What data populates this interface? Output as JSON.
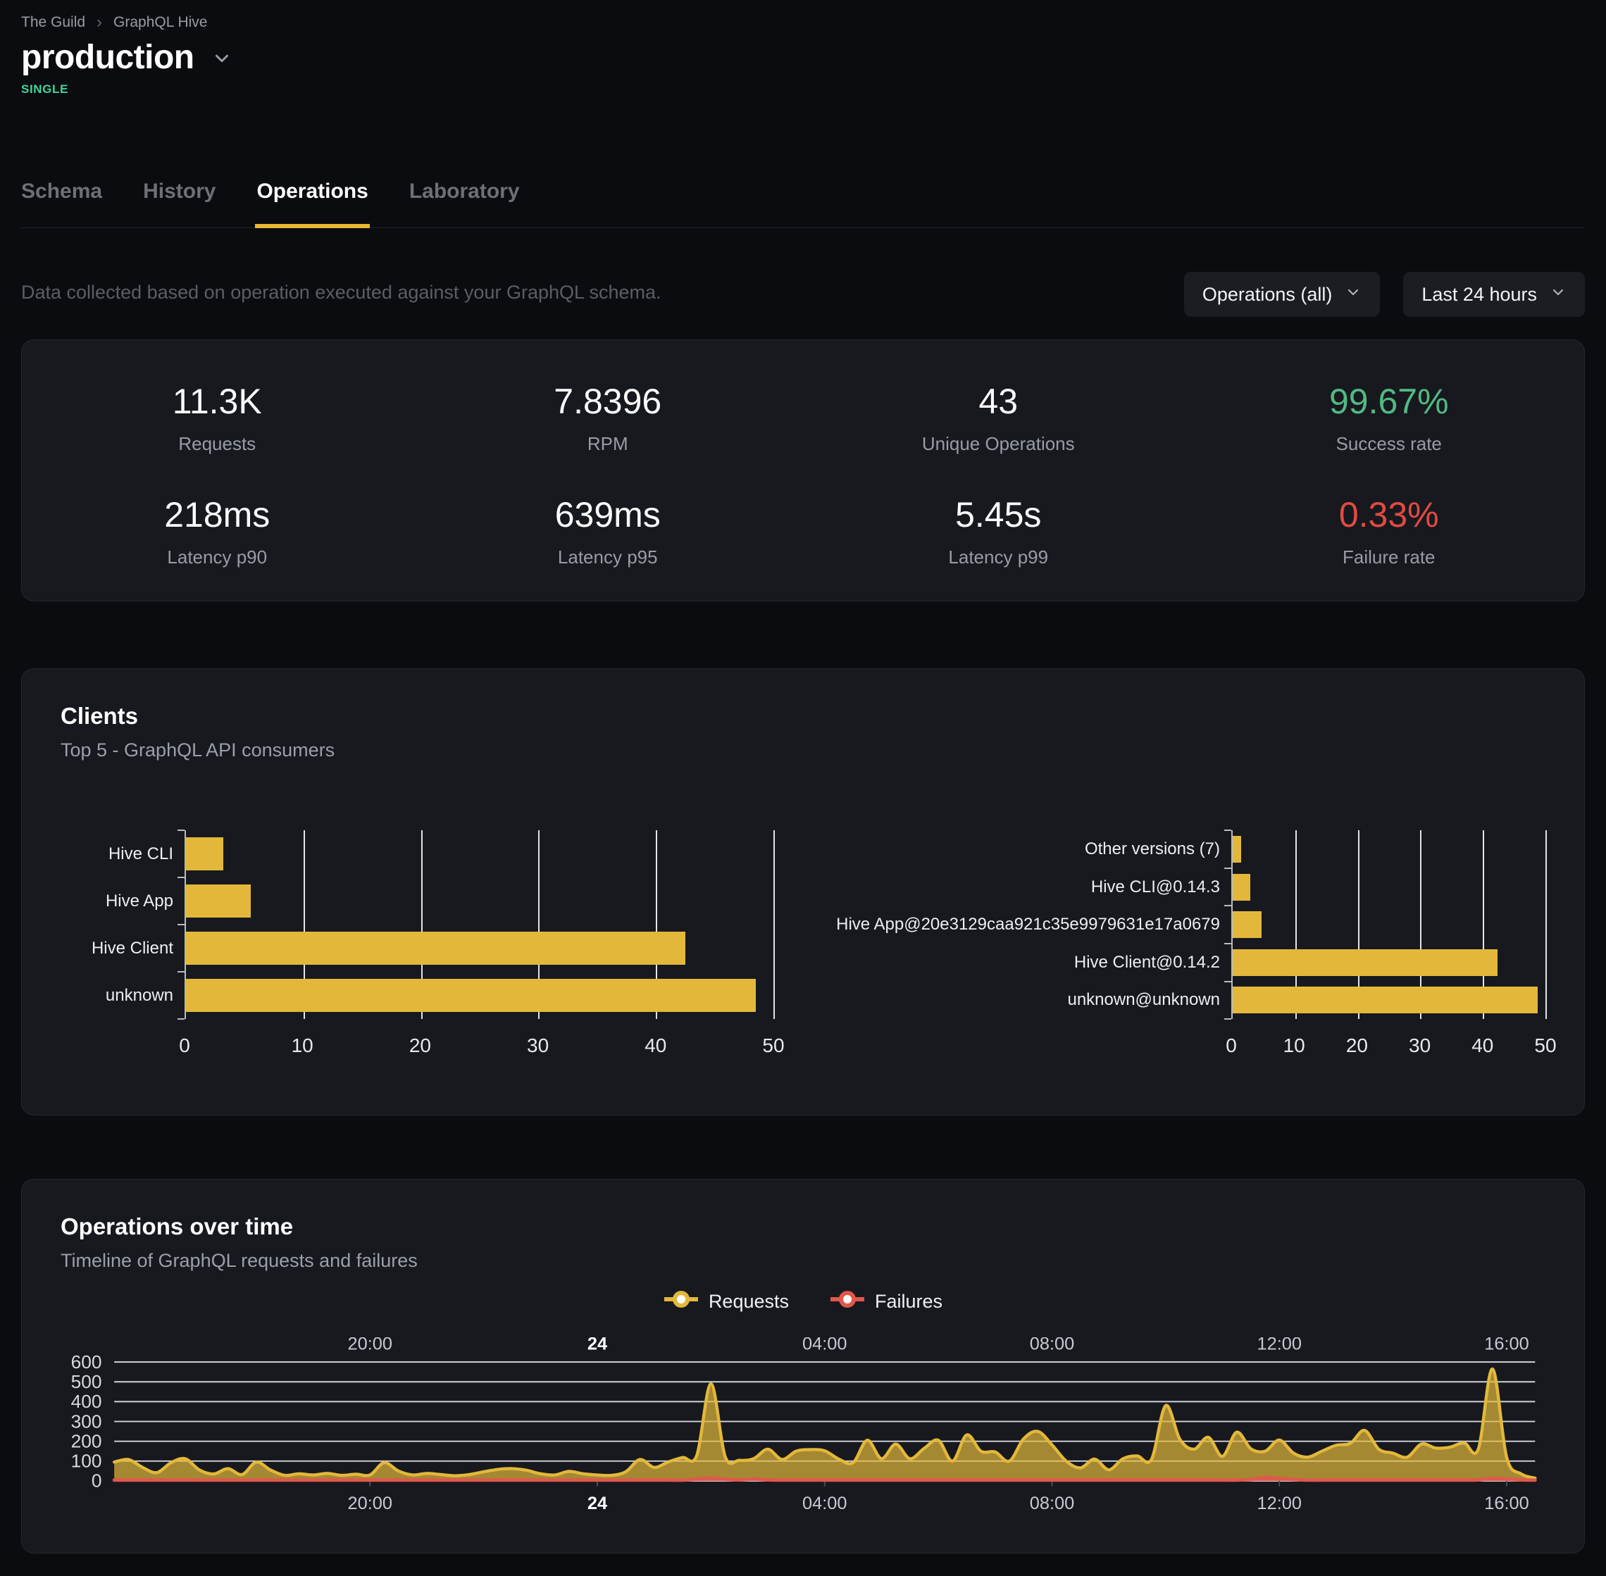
{
  "header": {
    "breadcrumb": {
      "items": [
        "The Guild",
        "GraphQL Hive"
      ],
      "separator": "›"
    },
    "project_name": "production",
    "badge": "SINGLE"
  },
  "tabs": [
    {
      "label": "Schema"
    },
    {
      "label": "History"
    },
    {
      "label": "Operations"
    },
    {
      "label": "Laboratory"
    }
  ],
  "toolbar": {
    "description": "Data collected based on operation executed against your GraphQL schema.",
    "operations_filter": "Operations (all)",
    "period_filter": "Last 24 hours"
  },
  "stats": [
    {
      "value": "11.3K",
      "label": "Requests"
    },
    {
      "value": "7.8396",
      "label": "RPM"
    },
    {
      "value": "43",
      "label": "Unique Operations"
    },
    {
      "value": "99.67%",
      "label": "Success rate",
      "accent": "green"
    },
    {
      "value": "218ms",
      "label": "Latency p90"
    },
    {
      "value": "639ms",
      "label": "Latency p95"
    },
    {
      "value": "5.45s",
      "label": "Latency p99"
    },
    {
      "value": "0.33%",
      "label": "Failure rate",
      "accent": "red"
    }
  ],
  "clients_card": {
    "title": "Clients",
    "subtitle": "Top 5 - GraphQL API consumers"
  },
  "timeline_card": {
    "title": "Operations over time",
    "subtitle": "Timeline of GraphQL requests and failures",
    "legend": [
      {
        "label": "Requests",
        "color": "#e3b83a"
      },
      {
        "label": "Failures",
        "color": "#e2574b"
      }
    ]
  },
  "colors": {
    "accent_yellow": "#e3b83a",
    "accent_red": "#e2574b",
    "stat_green": "#52b983",
    "stat_red": "#e24a41",
    "badge_mint": "#3fd69d",
    "card_bg": "#17191f",
    "page_bg": "#0b0c0f"
  },
  "chart_data": [
    {
      "id": "clients-by-name",
      "type": "bar",
      "orientation": "horizontal",
      "categories": [
        "Hive CLI",
        "Hive App",
        "Hive Client",
        "unknown"
      ],
      "values": [
        3.2,
        5.5,
        42.5,
        48.5
      ],
      "xlim": [
        0,
        50
      ],
      "x_ticks": [
        0,
        10,
        20,
        30,
        40,
        50
      ],
      "bar_color": "#e3b83a",
      "grid": true
    },
    {
      "id": "clients-by-version",
      "type": "bar",
      "orientation": "horizontal",
      "categories": [
        "Other versions (7)",
        "Hive CLI@0.14.3",
        "Hive App@20e3129caa921c35e9979631e17a0679",
        "Hive Client@0.14.2",
        "unknown@unknown"
      ],
      "values": [
        1.3,
        2.8,
        4.6,
        42.3,
        48.8
      ],
      "xlim": [
        0,
        50
      ],
      "x_ticks": [
        0,
        10,
        20,
        30,
        40,
        50
      ],
      "bar_color": "#e3b83a",
      "grid": true
    },
    {
      "id": "operations-over-time",
      "type": "area",
      "x_range_hours": [
        0,
        25
      ],
      "x_ticks": [
        {
          "t": 4.5,
          "label": "20:00"
        },
        {
          "t": 8.5,
          "label": "24",
          "bold": true
        },
        {
          "t": 12.5,
          "label": "04:00"
        },
        {
          "t": 16.5,
          "label": "08:00"
        },
        {
          "t": 20.5,
          "label": "12:00"
        },
        {
          "t": 24.5,
          "label": "16:00"
        }
      ],
      "ylim": [
        0,
        600
      ],
      "y_ticks": [
        0,
        100,
        200,
        300,
        400,
        500,
        600
      ],
      "grid": true,
      "legend_position": "top-center",
      "series": [
        {
          "name": "Requests",
          "color": "#e3b83a",
          "step_hours": 0.25,
          "values": [
            95,
            108,
            68,
            42,
            92,
            112,
            55,
            35,
            62,
            32,
            95,
            55,
            28,
            36,
            30,
            38,
            28,
            34,
            30,
            92,
            50,
            30,
            38,
            32,
            26,
            32,
            46,
            58,
            62,
            54,
            36,
            30,
            48,
            36,
            30,
            28,
            46,
            108,
            68,
            96,
            118,
            128,
            490,
            122,
            104,
            112,
            160,
            108,
            150,
            158,
            152,
            110,
            92,
            205,
            112,
            186,
            112,
            164,
            205,
            100,
            232,
            150,
            146,
            100,
            212,
            250,
            182,
            100,
            66,
            110,
            56,
            112,
            126,
            108,
            380,
            210,
            160,
            220,
            124,
            246,
            162,
            150,
            206,
            140,
            120,
            150,
            180,
            190,
            255,
            160,
            140,
            120,
            186,
            166,
            170,
            192,
            160,
            565,
            118,
            36,
            14
          ]
        },
        {
          "name": "Failures",
          "color": "#e2574b",
          "step_hours": 0.25,
          "values": [
            4,
            4,
            4,
            4,
            4,
            4,
            4,
            4,
            4,
            4,
            4,
            4,
            4,
            4,
            4,
            4,
            4,
            4,
            4,
            4,
            4,
            4,
            4,
            4,
            4,
            4,
            4,
            4,
            4,
            4,
            4,
            4,
            4,
            4,
            4,
            4,
            4,
            4,
            4,
            4,
            4,
            9,
            13,
            8,
            5,
            9,
            5,
            4,
            4,
            4,
            4,
            4,
            4,
            4,
            4,
            4,
            4,
            4,
            4,
            4,
            4,
            4,
            4,
            4,
            4,
            4,
            4,
            4,
            4,
            4,
            4,
            4,
            4,
            4,
            4,
            4,
            4,
            4,
            4,
            4,
            7,
            17,
            11,
            7,
            4,
            4,
            4,
            4,
            4,
            4,
            4,
            4,
            4,
            4,
            4,
            4,
            5,
            12,
            8,
            5,
            4
          ]
        }
      ]
    }
  ]
}
